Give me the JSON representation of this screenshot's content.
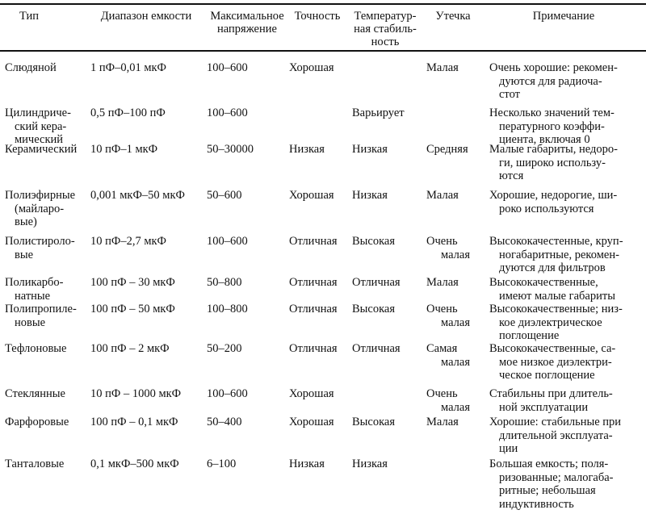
{
  "table": {
    "headers": [
      {
        "lines": [
          "Тип"
        ]
      },
      {
        "lines": [
          "Диапазон емкости"
        ]
      },
      {
        "lines": [
          "Максимальное",
          "напряжение"
        ]
      },
      {
        "lines": [
          "Точность"
        ]
      },
      {
        "lines": [
          "Температур-",
          "ная стабиль-",
          "ность"
        ]
      },
      {
        "lines": [
          "Утечка"
        ]
      },
      {
        "lines": [
          "Примечание"
        ]
      }
    ],
    "rows": [
      {
        "type": [
          "Слюдяной"
        ],
        "range": [
          "1 пФ–0,01 мкФ"
        ],
        "voltage": [
          "100–600"
        ],
        "accuracy": [
          "Хорошая"
        ],
        "stability": [],
        "leakage": [
          "Малая"
        ],
        "note": [
          "Очень хорошие: рекомен-",
          "дуются для радиоча-",
          "стот"
        ]
      },
      {
        "type": [
          "Цилиндриче-",
          "ский кера-",
          "мический"
        ],
        "range": [
          "0,5 пФ–100 пФ"
        ],
        "voltage": [
          "100–600"
        ],
        "accuracy": [],
        "stability": [
          "Варьирует"
        ],
        "leakage": [],
        "note": [
          "Несколько значений тем-",
          "пературного коэффи-",
          "циента, включая 0"
        ]
      },
      {
        "type": [
          "Керамический"
        ],
        "range": [
          "10 пФ–1 мкФ"
        ],
        "voltage": [
          "50–30000"
        ],
        "accuracy": [
          "Низкая"
        ],
        "stability": [
          "Низкая"
        ],
        "leakage": [
          "Средняя"
        ],
        "note": [
          "Малые габариты, недоро-",
          "ги, широко использу-",
          "ются"
        ]
      },
      {
        "type": [
          "Полиэфирные",
          "(майларо-",
          "вые)"
        ],
        "range": [
          "0,001 мкФ–50 мкФ"
        ],
        "voltage": [
          "50–600"
        ],
        "accuracy": [
          "Хорошая"
        ],
        "stability": [
          "Низкая"
        ],
        "leakage": [
          "Малая"
        ],
        "note": [
          "Хорошие, недорогие, ши-",
          "роко используются"
        ]
      },
      {
        "type": [
          "Полистироло-",
          "вые"
        ],
        "range": [
          "10 пФ–2,7 мкФ"
        ],
        "voltage": [
          "100–600"
        ],
        "accuracy": [
          "Отличная"
        ],
        "stability": [
          "Высокая"
        ],
        "leakage": [
          "Очень",
          "малая"
        ],
        "note": [
          "Высококачестенные, круп-",
          "ногабаритные, рекомен-",
          "дуются для фильтров"
        ]
      },
      {
        "type": [
          "Поликарбо-",
          "натные"
        ],
        "range": [
          "100 пФ – 30 мкФ"
        ],
        "voltage": [
          "50–800"
        ],
        "accuracy": [
          "Отличная"
        ],
        "stability": [
          "Отличная"
        ],
        "leakage": [
          "Малая"
        ],
        "note": [
          "Высококачественные,",
          "имеют малые габариты"
        ]
      },
      {
        "type": [
          "Полипропиле-",
          "новые"
        ],
        "range": [
          "100 пФ – 50 мкФ"
        ],
        "voltage": [
          "100–800"
        ],
        "accuracy": [
          "Отличная"
        ],
        "stability": [
          "Высокая"
        ],
        "leakage": [
          "Очень",
          "малая"
        ],
        "note": [
          "Высококачественные; низ-",
          "кое диэлектрическое",
          "поглощение"
        ]
      },
      {
        "type": [
          "Тефлоновые"
        ],
        "range": [
          "100 пФ – 2 мкФ"
        ],
        "voltage": [
          "50–200"
        ],
        "accuracy": [
          "Отличная"
        ],
        "stability": [
          "Отличная"
        ],
        "leakage": [
          "Самая",
          "малая"
        ],
        "note": [
          "Высококачественные, са-",
          "мое низкое диэлектри-",
          "ческое поглощение"
        ]
      },
      {
        "type": [
          "Стеклянные"
        ],
        "range": [
          "10 пФ – 1000 мкФ"
        ],
        "voltage": [
          "100–600"
        ],
        "accuracy": [
          "Хорошая"
        ],
        "stability": [],
        "leakage": [
          "Очень",
          "малая"
        ],
        "note": [
          "Стабильны при длитель-",
          "ной эксплуатации"
        ]
      },
      {
        "type": [
          "Фарфоровые"
        ],
        "range": [
          "100 пФ – 0,1 мкФ"
        ],
        "voltage": [
          "50–400"
        ],
        "accuracy": [
          "Хорошая"
        ],
        "stability": [
          "Высокая"
        ],
        "leakage": [
          "Малая"
        ],
        "note": [
          "Хорошие: стабильные при",
          "длительной эксплуата-",
          "ции"
        ]
      },
      {
        "type": [
          "Танталовые"
        ],
        "range": [
          "0,1 мкФ–500 мкФ"
        ],
        "voltage": [
          "6–100"
        ],
        "accuracy": [
          "Низкая"
        ],
        "stability": [
          "Низкая"
        ],
        "leakage": [],
        "note": [
          "Большая емкость; поля-",
          "ризованные; малогаба-",
          "ритные; небольшая",
          "индуктивность"
        ]
      }
    ]
  }
}
